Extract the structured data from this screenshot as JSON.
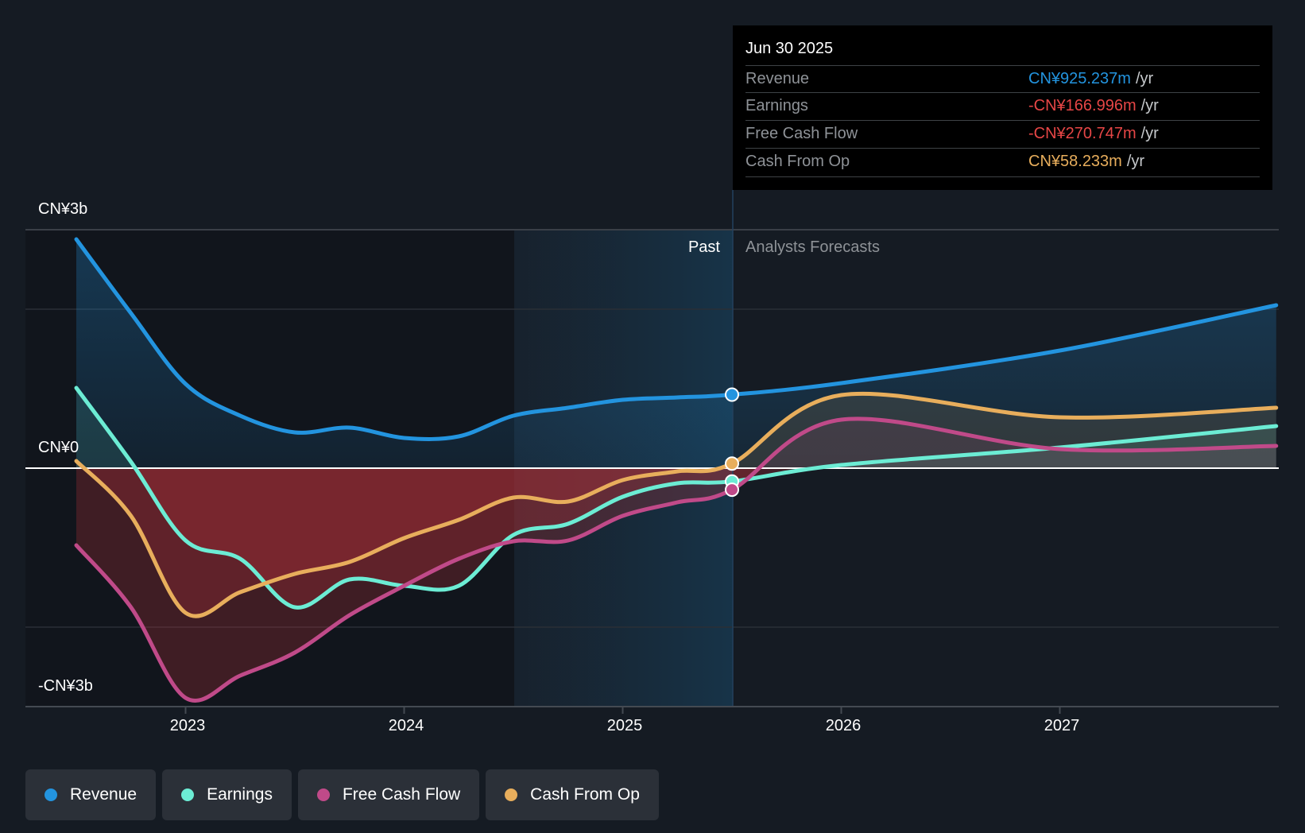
{
  "colors": {
    "revenue": "#2394df",
    "earnings": "#6cecd4",
    "free_cash_flow": "#c04a89",
    "cash_from_op": "#e8ae5c",
    "negative": "#e64646",
    "background": "#151b23"
  },
  "tooltip": {
    "date": "Jun 30 2025",
    "rows": [
      {
        "label": "Revenue",
        "value": "CN¥925.237m",
        "unit": "/yr",
        "color": "#2394df"
      },
      {
        "label": "Earnings",
        "value": "-CN¥166.996m",
        "unit": "/yr",
        "color": "#e64646"
      },
      {
        "label": "Free Cash Flow",
        "value": "-CN¥270.747m",
        "unit": "/yr",
        "color": "#e64646"
      },
      {
        "label": "Cash From Op",
        "value": "CN¥58.233m",
        "unit": "/yr",
        "color": "#e8ae5c"
      }
    ]
  },
  "legend": [
    {
      "label": "Revenue",
      "color": "#2394df"
    },
    {
      "label": "Earnings",
      "color": "#6cecd4"
    },
    {
      "label": "Free Cash Flow",
      "color": "#c04a89"
    },
    {
      "label": "Cash From Op",
      "color": "#e8ae5c"
    }
  ],
  "chart_data": {
    "type": "line",
    "title": "",
    "xlabel": "",
    "ylabel": "",
    "units": "CN¥ billions",
    "ylim": [
      -3,
      3
    ],
    "xlim": [
      2022.5,
      2027.99
    ],
    "y_tick_labels": [
      {
        "value": 3,
        "label": "CN¥3b"
      },
      {
        "value": 0,
        "label": "CN¥0"
      },
      {
        "value": -3,
        "label": "-CN¥3b"
      }
    ],
    "y_gridlines": [
      3,
      2,
      0,
      -2,
      -3
    ],
    "x_ticks": [
      {
        "value": 2023,
        "label": "2023"
      },
      {
        "value": 2024,
        "label": "2024"
      },
      {
        "value": 2025,
        "label": "2025"
      },
      {
        "value": 2026,
        "label": "2026"
      },
      {
        "value": 2027,
        "label": "2027"
      }
    ],
    "past_label": "Past",
    "forecast_label": "Analysts Forecasts",
    "highlight_start": 2024.5,
    "divider_x": 2025.5,
    "grid": true,
    "legend_position": "bottom-left",
    "series": [
      {
        "name": "Revenue",
        "key": "revenue",
        "past": {
          "x": [
            2022.5,
            2022.75,
            2023.0,
            2023.25,
            2023.5,
            2023.75,
            2024.0,
            2024.25,
            2024.5,
            2024.75,
            2025.0,
            2025.25,
            2025.5
          ],
          "y": [
            2.88,
            1.95,
            1.06,
            0.66,
            0.45,
            0.51,
            0.38,
            0.4,
            0.66,
            0.76,
            0.86,
            0.89,
            0.925
          ]
        },
        "forecast": {
          "x": [
            2025.5,
            2026.0,
            2027.0,
            2027.99
          ],
          "y": [
            0.925,
            1.07,
            1.48,
            2.05
          ]
        }
      },
      {
        "name": "Earnings",
        "key": "earnings",
        "past": {
          "x": [
            2022.5,
            2022.75,
            2023.0,
            2023.25,
            2023.5,
            2023.75,
            2024.0,
            2024.25,
            2024.5,
            2024.75,
            2025.0,
            2025.25,
            2025.5
          ],
          "y": [
            1.01,
            0.08,
            -0.91,
            -1.14,
            -1.75,
            -1.4,
            -1.48,
            -1.48,
            -0.84,
            -0.7,
            -0.36,
            -0.19,
            -0.167
          ]
        },
        "forecast": {
          "x": [
            2025.5,
            2026.0,
            2027.0,
            2027.99
          ],
          "y": [
            -0.167,
            0.04,
            0.26,
            0.53
          ]
        }
      },
      {
        "name": "Free Cash Flow",
        "key": "free_cash_flow",
        "past": {
          "x": [
            2022.5,
            2022.75,
            2023.0,
            2023.25,
            2023.5,
            2023.75,
            2024.0,
            2024.25,
            2024.5,
            2024.75,
            2025.0,
            2025.25,
            2025.5
          ],
          "y": [
            -0.97,
            -1.75,
            -2.89,
            -2.61,
            -2.32,
            -1.85,
            -1.48,
            -1.14,
            -0.92,
            -0.91,
            -0.6,
            -0.43,
            -0.271
          ]
        },
        "forecast": {
          "x": [
            2025.5,
            2026.0,
            2027.0,
            2027.99
          ],
          "y": [
            -0.271,
            0.61,
            0.24,
            0.28
          ]
        }
      },
      {
        "name": "Cash From Op",
        "key": "cash_from_op",
        "past": {
          "x": [
            2022.5,
            2022.75,
            2023.0,
            2023.25,
            2023.5,
            2023.75,
            2024.0,
            2024.25,
            2024.5,
            2024.75,
            2025.0,
            2025.25,
            2025.5
          ],
          "y": [
            0.09,
            -0.6,
            -1.82,
            -1.56,
            -1.33,
            -1.18,
            -0.88,
            -0.65,
            -0.37,
            -0.42,
            -0.15,
            -0.04,
            0.058
          ]
        },
        "forecast": {
          "x": [
            2025.5,
            2026.0,
            2027.0,
            2027.99
          ],
          "y": [
            0.058,
            0.92,
            0.64,
            0.76
          ]
        }
      }
    ]
  }
}
